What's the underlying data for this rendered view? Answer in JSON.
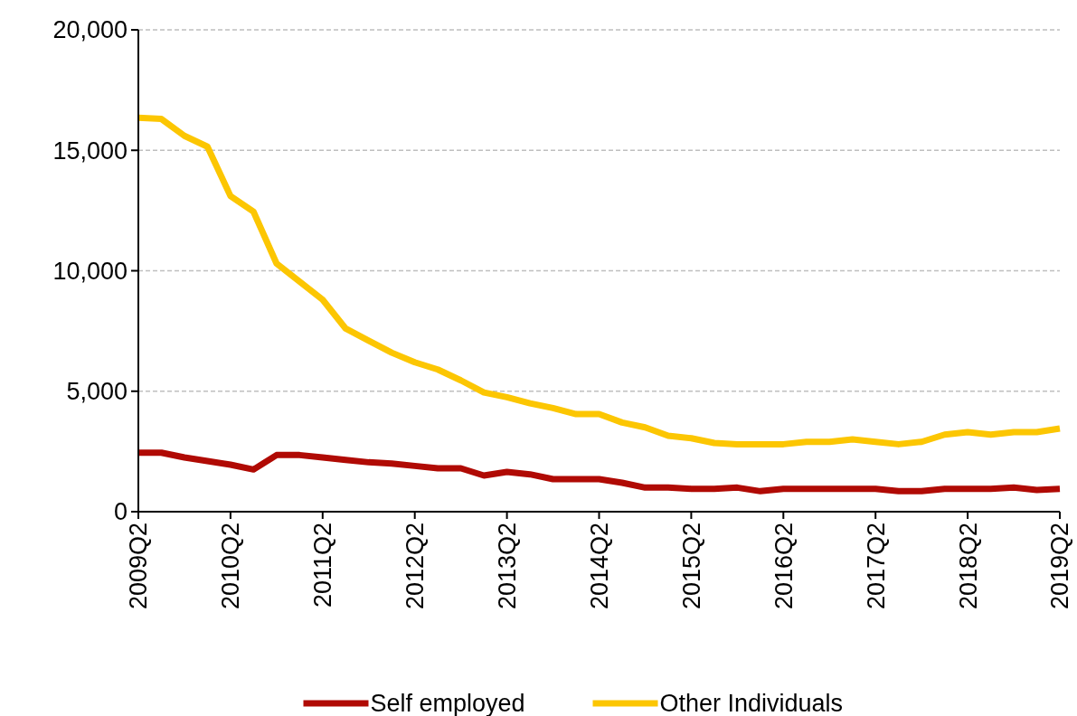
{
  "chart_data": {
    "type": "line",
    "categories": [
      "2009Q2",
      null,
      null,
      null,
      "2010Q2",
      null,
      null,
      null,
      "2011Q2",
      null,
      null,
      null,
      "2012Q2",
      null,
      null,
      null,
      "2013Q2",
      null,
      null,
      null,
      "2014Q2",
      null,
      null,
      null,
      "2015Q2",
      null,
      null,
      null,
      "2016Q2",
      null,
      null,
      null,
      "2017Q2",
      null,
      null,
      null,
      "2018Q2",
      null,
      null,
      null,
      "2019Q2"
    ],
    "series": [
      {
        "name": "Self employed",
        "color": "#b00a04",
        "values": [
          2450,
          2450,
          2250,
          2100,
          1950,
          1750,
          2350,
          2350,
          2250,
          2150,
          2050,
          2000,
          1900,
          1800,
          1800,
          1500,
          1650,
          1550,
          1350,
          1350,
          1350,
          1200,
          1000,
          1000,
          950,
          950,
          1000,
          850,
          950,
          950,
          950,
          950,
          950,
          850,
          850,
          950,
          950,
          950,
          1000,
          900,
          950
        ]
      },
      {
        "name": "Other Individuals",
        "color": "#fcc602",
        "values": [
          16350,
          16300,
          15600,
          15150,
          13100,
          12450,
          10300,
          9550,
          8800,
          7600,
          7100,
          6600,
          6200,
          5900,
          5450,
          4950,
          4750,
          4500,
          4300,
          4050,
          4050,
          3700,
          3500,
          3150,
          3050,
          2850,
          2800,
          2800,
          2800,
          2900,
          2900,
          3000,
          2900,
          2800,
          2900,
          3200,
          3300,
          3200,
          3300,
          3300,
          3450
        ]
      }
    ],
    "ylim": [
      0,
      20000
    ],
    "yticks": [
      {
        "value": 0,
        "label": "0"
      },
      {
        "value": 5000,
        "label": "5,000"
      },
      {
        "value": 10000,
        "label": "10,000"
      },
      {
        "value": 15000,
        "label": "15,000"
      },
      {
        "value": 20000,
        "label": "20,000"
      }
    ],
    "grid": "y",
    "legend": "bottom",
    "marker": "none",
    "line_style": "solid"
  }
}
